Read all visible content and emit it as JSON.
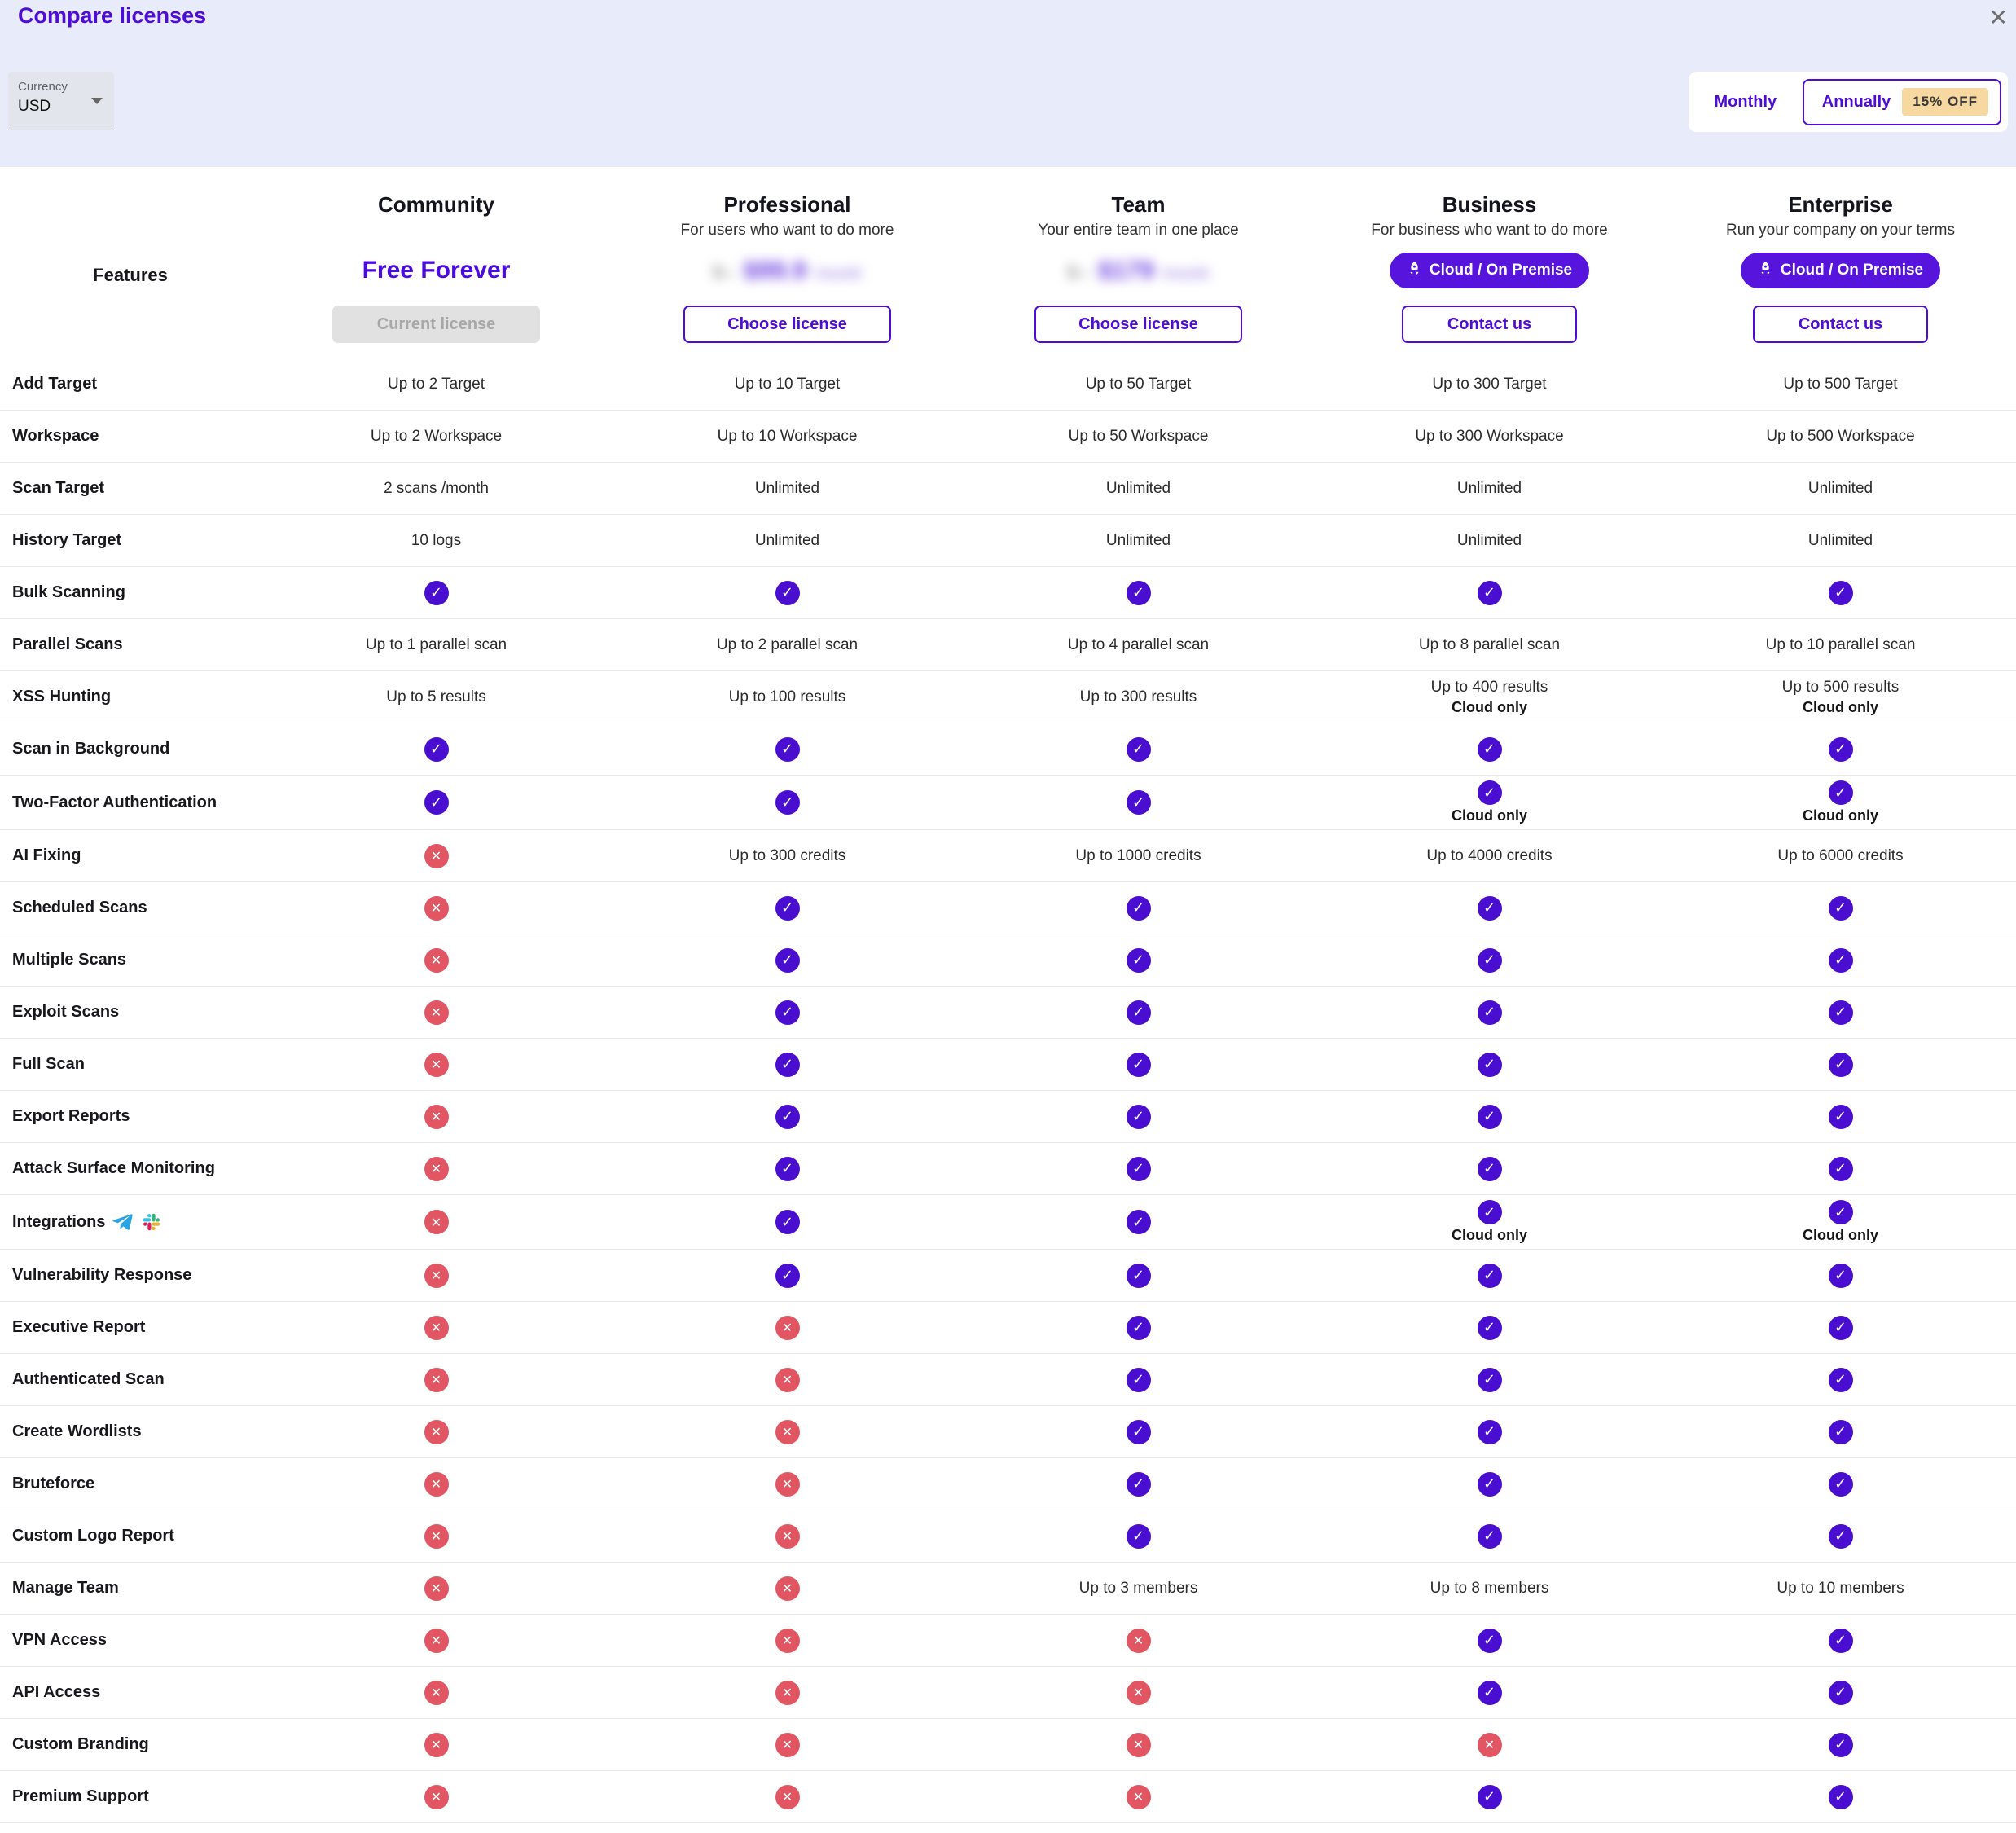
{
  "modal": {
    "title": "Compare licenses",
    "close_icon": "✕"
  },
  "controls": {
    "currency": {
      "label": "Currency",
      "value": "USD"
    },
    "billing": {
      "monthly": "Monthly",
      "annually": "Annually",
      "discount": "15% OFF",
      "selected": "annually"
    }
  },
  "features_header": "Features",
  "plans": [
    {
      "name": "Community",
      "subtitle": "",
      "price_text": "Free Forever",
      "action": "Current license",
      "action_type": "current"
    },
    {
      "name": "Professional",
      "subtitle": "For users who want to do more",
      "price_old": "$--",
      "price_amount": "$99.9",
      "price_period": "/month",
      "price_blurred": true,
      "action": "Choose license",
      "action_type": "choose"
    },
    {
      "name": "Team",
      "subtitle": "Your entire team in one place",
      "price_old": "$--",
      "price_amount": "$179",
      "price_period": "/month",
      "price_blurred": true,
      "action": "Choose license",
      "action_type": "choose"
    },
    {
      "name": "Business",
      "subtitle": "For business who want to do more",
      "badge": "Cloud / On Premise",
      "action": "Contact us",
      "action_type": "contact"
    },
    {
      "name": "Enterprise",
      "subtitle": "Run your company on your terms",
      "badge": "Cloud / On Premise",
      "action": "Contact us",
      "action_type": "contact"
    }
  ],
  "rows": [
    {
      "name": "Add Target",
      "cells": [
        {
          "t": "text",
          "v": "Up to 2 Target"
        },
        {
          "t": "text",
          "v": "Up to 10 Target"
        },
        {
          "t": "text",
          "v": "Up to 50 Target"
        },
        {
          "t": "text",
          "v": "Up to 300 Target"
        },
        {
          "t": "text",
          "v": "Up to 500 Target"
        }
      ]
    },
    {
      "name": "Workspace",
      "cells": [
        {
          "t": "text",
          "v": "Up to 2 Workspace"
        },
        {
          "t": "text",
          "v": "Up to 10 Workspace"
        },
        {
          "t": "text",
          "v": "Up to 50 Workspace"
        },
        {
          "t": "text",
          "v": "Up to 300 Workspace"
        },
        {
          "t": "text",
          "v": "Up to 500 Workspace"
        }
      ]
    },
    {
      "name": "Scan Target",
      "cells": [
        {
          "t": "text",
          "v": "2 scans /month"
        },
        {
          "t": "text",
          "v": "Unlimited"
        },
        {
          "t": "text",
          "v": "Unlimited"
        },
        {
          "t": "text",
          "v": "Unlimited"
        },
        {
          "t": "text",
          "v": "Unlimited"
        }
      ]
    },
    {
      "name": "History Target",
      "cells": [
        {
          "t": "text",
          "v": "10 logs"
        },
        {
          "t": "text",
          "v": "Unlimited"
        },
        {
          "t": "text",
          "v": "Unlimited"
        },
        {
          "t": "text",
          "v": "Unlimited"
        },
        {
          "t": "text",
          "v": "Unlimited"
        }
      ]
    },
    {
      "name": "Bulk Scanning",
      "cells": [
        {
          "t": "check"
        },
        {
          "t": "check"
        },
        {
          "t": "check"
        },
        {
          "t": "check"
        },
        {
          "t": "check"
        }
      ]
    },
    {
      "name": "Parallel Scans",
      "cells": [
        {
          "t": "text",
          "v": "Up to 1 parallel scan"
        },
        {
          "t": "text",
          "v": "Up to 2 parallel scan"
        },
        {
          "t": "text",
          "v": "Up to 4 parallel scan"
        },
        {
          "t": "text",
          "v": "Up to 8 parallel scan"
        },
        {
          "t": "text",
          "v": "Up to 10 parallel scan"
        }
      ]
    },
    {
      "name": "XSS Hunting",
      "cells": [
        {
          "t": "text",
          "v": "Up to 5 results"
        },
        {
          "t": "text",
          "v": "Up to 100 results"
        },
        {
          "t": "text",
          "v": "Up to 300 results"
        },
        {
          "t": "text",
          "v": "Up to 400 results",
          "note": "Cloud only"
        },
        {
          "t": "text",
          "v": "Up to 500 results",
          "note": "Cloud only"
        }
      ]
    },
    {
      "name": "Scan in Background",
      "cells": [
        {
          "t": "check"
        },
        {
          "t": "check"
        },
        {
          "t": "check"
        },
        {
          "t": "check"
        },
        {
          "t": "check"
        }
      ]
    },
    {
      "name": "Two-Factor Authentication",
      "cells": [
        {
          "t": "check"
        },
        {
          "t": "check"
        },
        {
          "t": "check"
        },
        {
          "t": "check",
          "note": "Cloud only"
        },
        {
          "t": "check",
          "note": "Cloud only"
        }
      ]
    },
    {
      "name": "AI Fixing",
      "cells": [
        {
          "t": "cross"
        },
        {
          "t": "text",
          "v": "Up to 300 credits"
        },
        {
          "t": "text",
          "v": "Up to 1000 credits"
        },
        {
          "t": "text",
          "v": "Up to 4000 credits"
        },
        {
          "t": "text",
          "v": "Up to 6000 credits"
        }
      ]
    },
    {
      "name": "Scheduled Scans",
      "cells": [
        {
          "t": "cross"
        },
        {
          "t": "check"
        },
        {
          "t": "check"
        },
        {
          "t": "check"
        },
        {
          "t": "check"
        }
      ]
    },
    {
      "name": "Multiple Scans",
      "cells": [
        {
          "t": "cross"
        },
        {
          "t": "check"
        },
        {
          "t": "check"
        },
        {
          "t": "check"
        },
        {
          "t": "check"
        }
      ]
    },
    {
      "name": "Exploit Scans",
      "cells": [
        {
          "t": "cross"
        },
        {
          "t": "check"
        },
        {
          "t": "check"
        },
        {
          "t": "check"
        },
        {
          "t": "check"
        }
      ]
    },
    {
      "name": "Full Scan",
      "cells": [
        {
          "t": "cross"
        },
        {
          "t": "check"
        },
        {
          "t": "check"
        },
        {
          "t": "check"
        },
        {
          "t": "check"
        }
      ]
    },
    {
      "name": "Export Reports",
      "cells": [
        {
          "t": "cross"
        },
        {
          "t": "check"
        },
        {
          "t": "check"
        },
        {
          "t": "check"
        },
        {
          "t": "check"
        }
      ]
    },
    {
      "name": "Attack Surface Monitoring",
      "cells": [
        {
          "t": "cross"
        },
        {
          "t": "check"
        },
        {
          "t": "check"
        },
        {
          "t": "check"
        },
        {
          "t": "check"
        }
      ]
    },
    {
      "name": "Integrations",
      "icons": [
        "telegram",
        "slack"
      ],
      "cells": [
        {
          "t": "cross"
        },
        {
          "t": "check"
        },
        {
          "t": "check"
        },
        {
          "t": "check",
          "note": "Cloud only"
        },
        {
          "t": "check",
          "note": "Cloud only"
        }
      ]
    },
    {
      "name": "Vulnerability Response",
      "cells": [
        {
          "t": "cross"
        },
        {
          "t": "check"
        },
        {
          "t": "check"
        },
        {
          "t": "check"
        },
        {
          "t": "check"
        }
      ]
    },
    {
      "name": "Executive Report",
      "cells": [
        {
          "t": "cross"
        },
        {
          "t": "cross"
        },
        {
          "t": "check"
        },
        {
          "t": "check"
        },
        {
          "t": "check"
        }
      ]
    },
    {
      "name": "Authenticated Scan",
      "cells": [
        {
          "t": "cross"
        },
        {
          "t": "cross"
        },
        {
          "t": "check"
        },
        {
          "t": "check"
        },
        {
          "t": "check"
        }
      ]
    },
    {
      "name": "Create Wordlists",
      "cells": [
        {
          "t": "cross"
        },
        {
          "t": "cross"
        },
        {
          "t": "check"
        },
        {
          "t": "check"
        },
        {
          "t": "check"
        }
      ]
    },
    {
      "name": "Bruteforce",
      "cells": [
        {
          "t": "cross"
        },
        {
          "t": "cross"
        },
        {
          "t": "check"
        },
        {
          "t": "check"
        },
        {
          "t": "check"
        }
      ]
    },
    {
      "name": "Custom Logo Report",
      "cells": [
        {
          "t": "cross"
        },
        {
          "t": "cross"
        },
        {
          "t": "check"
        },
        {
          "t": "check"
        },
        {
          "t": "check"
        }
      ]
    },
    {
      "name": "Manage Team",
      "cells": [
        {
          "t": "cross"
        },
        {
          "t": "cross"
        },
        {
          "t": "text",
          "v": "Up to 3 members"
        },
        {
          "t": "text",
          "v": "Up to 8 members"
        },
        {
          "t": "text",
          "v": "Up to 10 members"
        }
      ]
    },
    {
      "name": "VPN Access",
      "cells": [
        {
          "t": "cross"
        },
        {
          "t": "cross"
        },
        {
          "t": "cross"
        },
        {
          "t": "check"
        },
        {
          "t": "check"
        }
      ]
    },
    {
      "name": "API Access",
      "cells": [
        {
          "t": "cross"
        },
        {
          "t": "cross"
        },
        {
          "t": "cross"
        },
        {
          "t": "check"
        },
        {
          "t": "check"
        }
      ]
    },
    {
      "name": "Custom Branding",
      "cells": [
        {
          "t": "cross"
        },
        {
          "t": "cross"
        },
        {
          "t": "cross"
        },
        {
          "t": "cross"
        },
        {
          "t": "check"
        }
      ]
    },
    {
      "name": "Premium Support",
      "cells": [
        {
          "t": "cross"
        },
        {
          "t": "cross"
        },
        {
          "t": "cross"
        },
        {
          "t": "check"
        },
        {
          "t": "check"
        }
      ]
    }
  ],
  "colors": {
    "accent": "#4e0cd6",
    "check_bg": "#4a0ed1",
    "cross_bg": "#e25663",
    "badge_bg": "#5614dd",
    "discount_bg": "#f7d8a1",
    "topbar_bg": "#e8ecfa",
    "free_text": "#4b0be0"
  }
}
